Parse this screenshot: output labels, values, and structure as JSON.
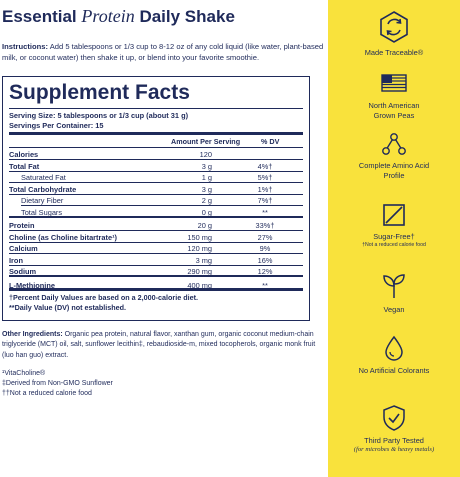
{
  "title_a": "Essential",
  "title_b": "Protein",
  "title_c": "Daily Shake",
  "instructions_label": "Instructions:",
  "instructions_text": "Add 5 tablespoons or 1/3 cup to 8-12 oz of any cold liquid (like water, plant-based milk, or coconut water) then shake it up, or blend into your favorite smoothie.",
  "facts": {
    "title": "Supplement Facts",
    "serving_size": "Serving Size: 5 tablespoons or 1/3 cup (about 31 g)",
    "servings_per": "Servings Per Container: 15",
    "col_amount": "Amount Per Serving",
    "col_dv": "% DV",
    "rows": [
      {
        "name": "Calories",
        "amt": "120",
        "dv": ""
      },
      {
        "name": "Total Fat",
        "amt": "3 g",
        "dv": "4%†"
      },
      {
        "name": "Saturated Fat",
        "amt": "1 g",
        "dv": "5%†"
      },
      {
        "name": "Total Carbohydrate",
        "amt": "3 g",
        "dv": "1%†"
      },
      {
        "name": "Dietary Fiber",
        "amt": "2 g",
        "dv": "7%†"
      },
      {
        "name": "Total Sugars",
        "amt": "0 g",
        "dv": "**"
      },
      {
        "name": "Protein",
        "amt": "20 g",
        "dv": "33%†"
      },
      {
        "name": "Choline (as Choline bitartrate¹)",
        "amt": "150 mg",
        "dv": "27%"
      },
      {
        "name": "Calcium",
        "amt": "120 mg",
        "dv": "9%"
      },
      {
        "name": "Iron",
        "amt": "3 mg",
        "dv": "16%"
      },
      {
        "name": "Sodium",
        "amt": "290 mg",
        "dv": "12%"
      },
      {
        "name": "L-Methionine",
        "amt": "400 mg",
        "dv": "**"
      }
    ],
    "footnote1": "†Percent Daily Values are based on a 2,000-calorie diet.",
    "footnote2": "**Daily Value (DV) not established."
  },
  "other_label": "Other Ingredients:",
  "other_text": "Organic pea protein, natural flavor, xanthan gum, organic coconut medium-chain triglyceride (MCT) oil, salt, sunflower lecithin‡, rebaudioside-m, mixed tocopherols, organic monk fruit (luo han guo) extract.",
  "fn1": "¹VitaCholine®",
  "fn2": "‡Derived from Non-GMO Sunflower",
  "fn3": "††Not a reduced calorie food",
  "badges": [
    {
      "icon": "traceable-arrows-icon",
      "label": "Made Traceable®"
    },
    {
      "icon": "usa-flag-icon",
      "label": "North American Grown Peas"
    },
    {
      "icon": "molecule-icon",
      "label": "Complete Amino Acid Profile"
    },
    {
      "icon": "sugar-free-icon",
      "label": "Sugar-Free†",
      "note": "†Not a reduced calorie food"
    },
    {
      "icon": "leaf-sprout-icon",
      "label": "Vegan"
    },
    {
      "icon": "droplet-icon",
      "label": "No Artificial Colorants"
    },
    {
      "icon": "shield-check-icon",
      "label": "Third Party Tested",
      "sub": "(for microbes & heavy metals)"
    }
  ],
  "colors": {
    "navy": "#1f2a5a",
    "yellow": "#f9e23c"
  }
}
